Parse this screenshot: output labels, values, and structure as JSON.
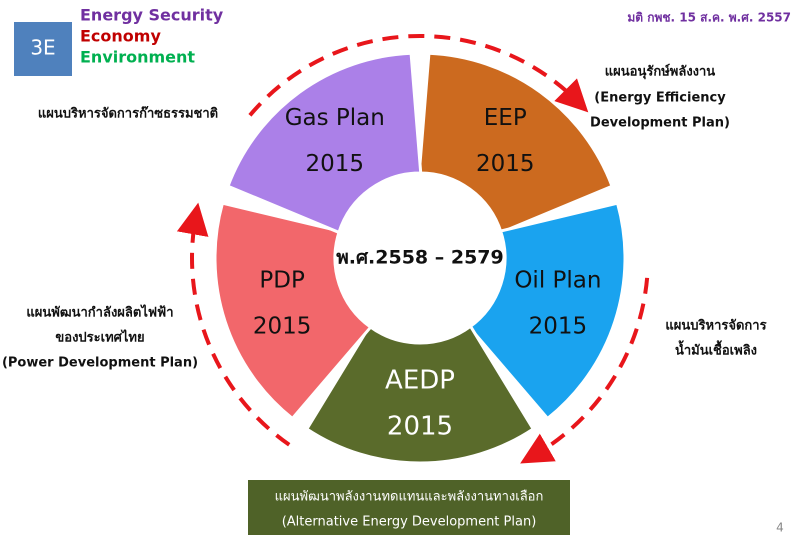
{
  "header": {
    "badge": "3E",
    "items": [
      {
        "text": "Energy Security",
        "color": "#7030a0"
      },
      {
        "text": "Economy",
        "color": "#c00000"
      },
      {
        "text": "Environment",
        "color": "#00b050"
      }
    ],
    "note": "มติ กพช. 15 ส.ค. พ.ศ. 2557"
  },
  "center": "พ.ศ.2558 – 2579",
  "segments": [
    {
      "lines": [
        "EEP",
        "2015"
      ],
      "color": "#cc6a1f"
    },
    {
      "lines": [
        "Oil Plan",
        "2015"
      ],
      "color": "#1aa3ef"
    },
    {
      "lines": [
        "AEDP",
        "2015"
      ],
      "color": "#5a6b2b"
    },
    {
      "lines": [
        "PDP",
        "2015"
      ],
      "color": "#f2676b"
    },
    {
      "lines": [
        "Gas Plan",
        "2015"
      ],
      "color": "#ab80e8"
    }
  ],
  "descriptions": {
    "gas": [
      "แผนบริหารจัดการก๊าซธรรมชาติ"
    ],
    "eep": [
      "แผนอนุรักษ์พลังงาน",
      "(Energy Efficiency",
      "Development Plan)"
    ],
    "oil": [
      "แผนบริหารจัดการ",
      "น้ำมันเชื้อเพลิง"
    ],
    "pdp": [
      "แผนพัฒนากำลังผลิตไฟฟ้า",
      "ของประเทศไทย",
      "(Power Development Plan)"
    ],
    "aedp": [
      "แผนพัฒนาพลังงานทดแทนและพลังงานทางเลือก",
      "(Alternative Energy Development Plan)"
    ]
  },
  "page_number": "4"
}
